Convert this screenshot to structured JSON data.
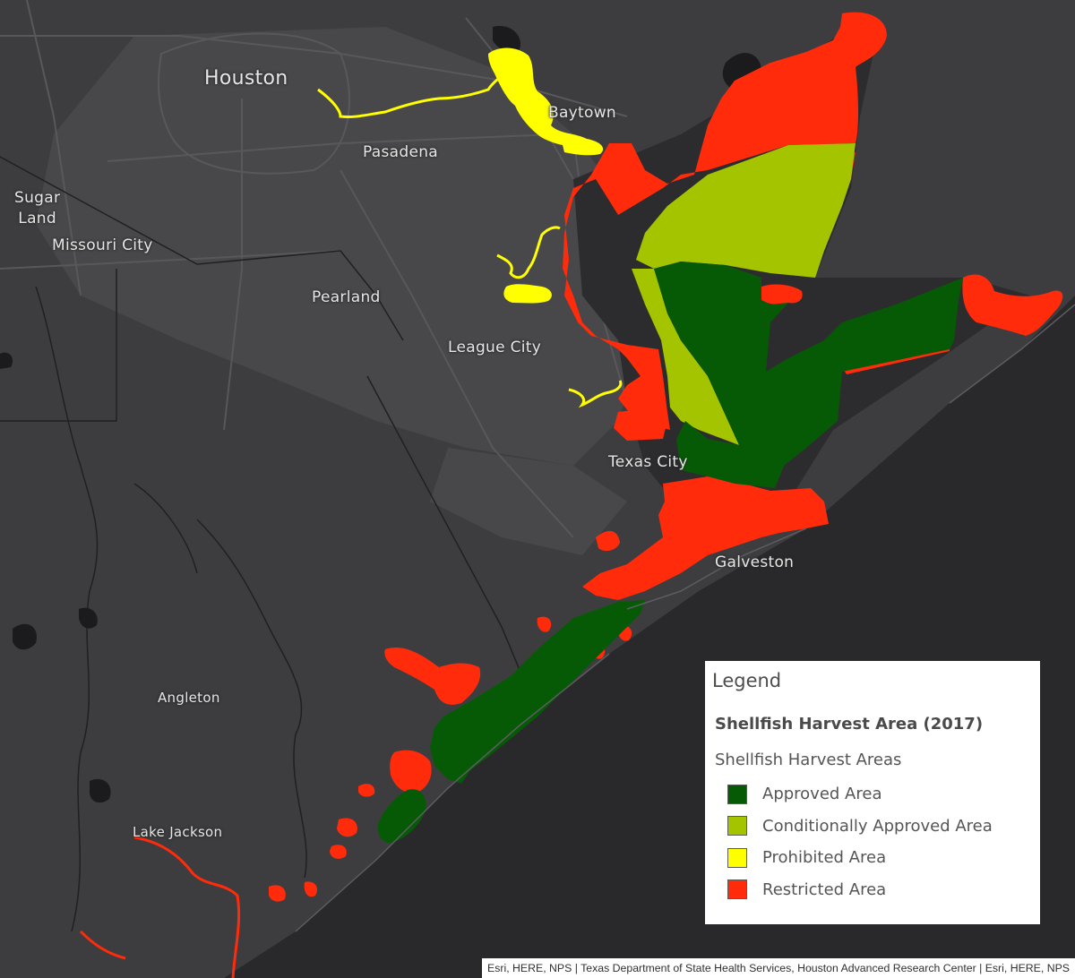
{
  "map": {
    "cities": [
      {
        "name": "Houston"
      },
      {
        "name": "Baytown"
      },
      {
        "name": "Pasadena"
      },
      {
        "name": "Sugar\nLand"
      },
      {
        "name": "Missouri City"
      },
      {
        "name": "Pearland"
      },
      {
        "name": "League City"
      },
      {
        "name": "Texas City"
      },
      {
        "name": "Galveston"
      },
      {
        "name": "Angleton"
      },
      {
        "name": "Lake Jackson"
      }
    ]
  },
  "legend": {
    "title": "Legend",
    "layer_title": "Shellfish Harvest Area (2017)",
    "sublayer_title": "Shellfish Harvest Areas",
    "items": [
      {
        "label": "Approved Area",
        "color": "#075a05"
      },
      {
        "label": "Conditionally Approved Area",
        "color": "#a4c400"
      },
      {
        "label": "Prohibited Area",
        "color": "#ffff00"
      },
      {
        "label": "Restricted Area",
        "color": "#ff2b0a"
      }
    ]
  },
  "attribution": "Esri, HERE, NPS | Texas Department of State Health Services, Houston Advanced Research Center | Esri, HERE, NPS",
  "colors": {
    "land": "#3d3d40",
    "urban": "#4a4a4d",
    "water": "#29292c",
    "roads": "#5a5a5e",
    "boundaries": "#1e1e1e",
    "approved": "#075a05",
    "conditional": "#a4c400",
    "prohibited": "#ffff00",
    "restricted": "#ff2b0a"
  }
}
